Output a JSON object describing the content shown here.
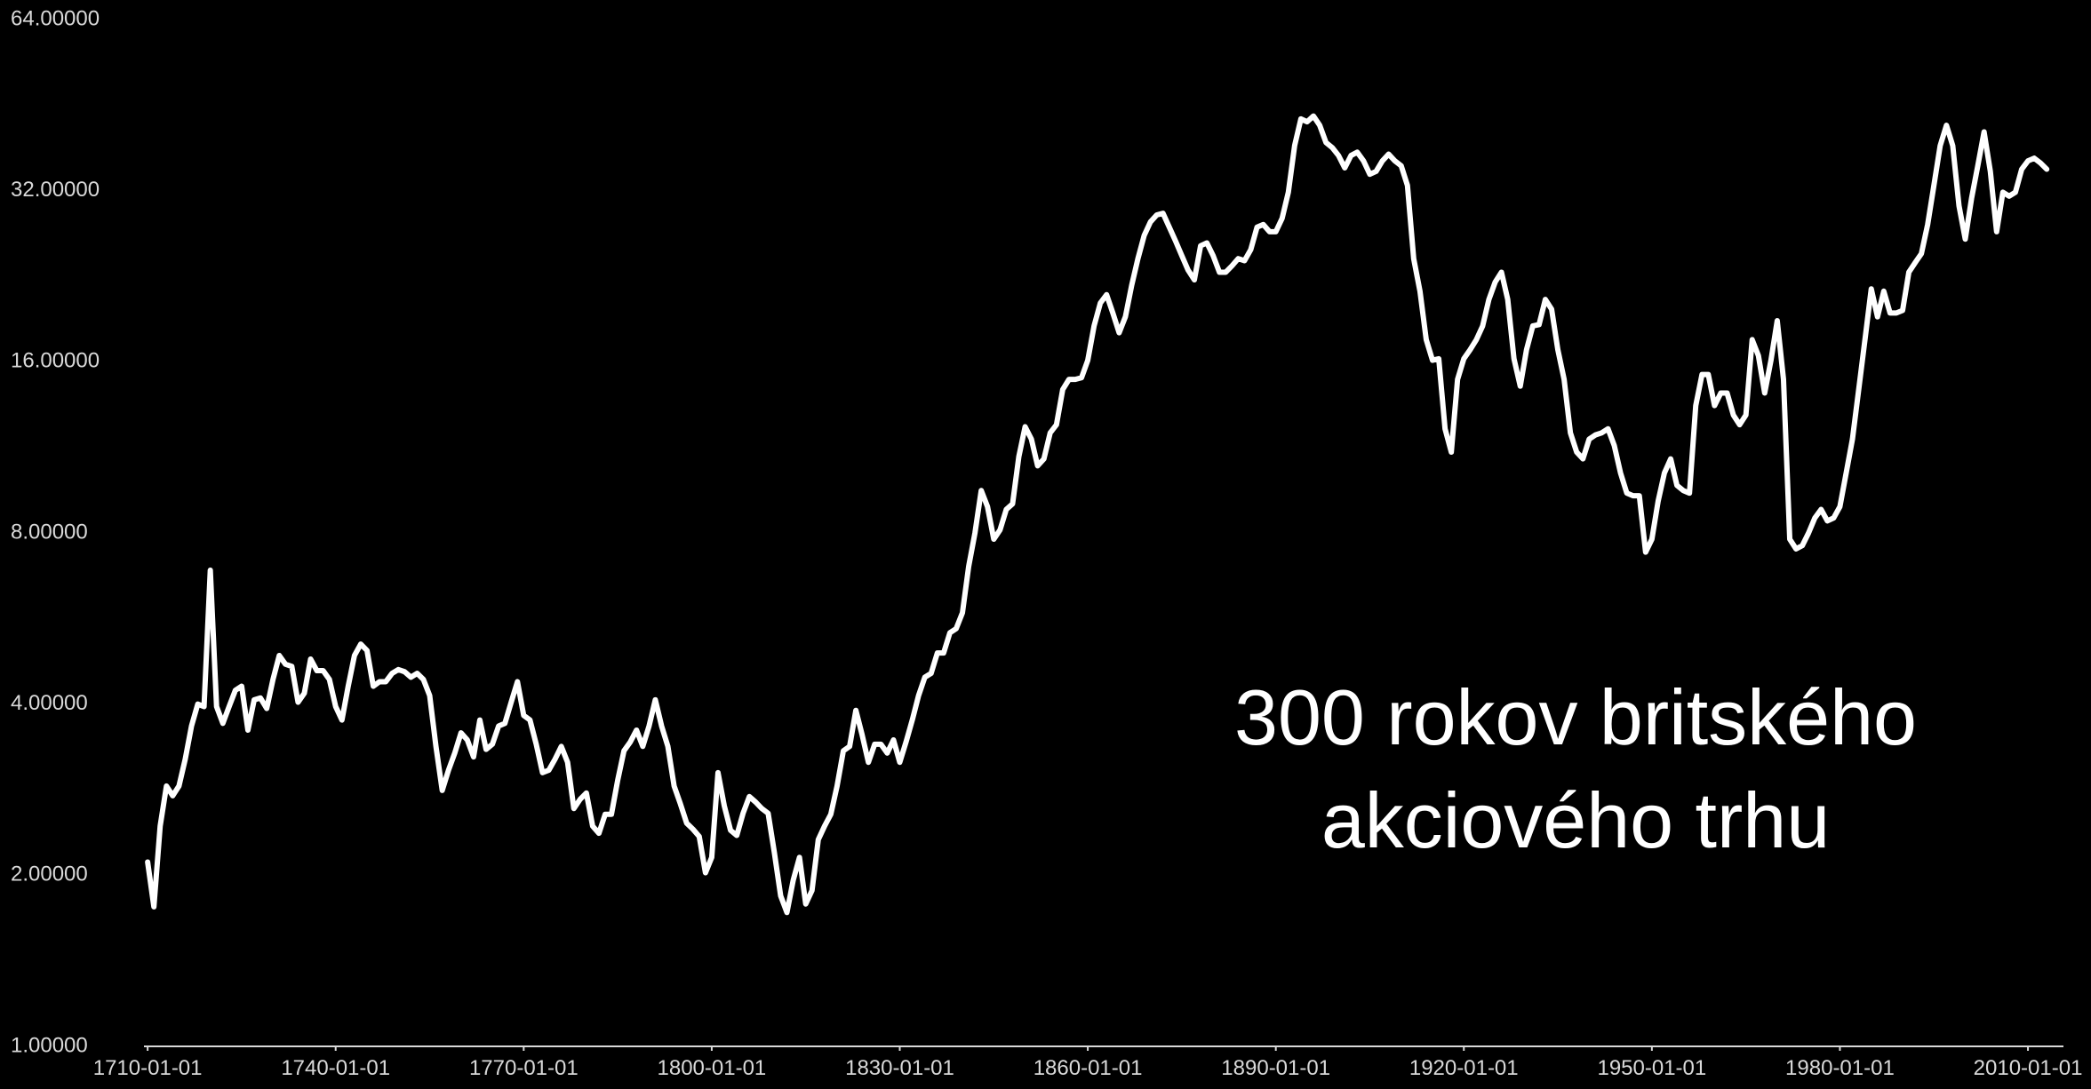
{
  "chart_data": {
    "type": "line",
    "yscale": "log",
    "color": "#ffffff",
    "line_width": 6,
    "annotation": [
      "300 rokov britského",
      "akciového trhu"
    ],
    "xlim": [
      "1709-06-01",
      "2015-09-01"
    ],
    "xticks": [
      "1710-01-01",
      "1740-01-01",
      "1770-01-01",
      "1800-01-01",
      "1830-01-01",
      "1860-01-01",
      "1890-01-01",
      "1920-01-01",
      "1950-01-01",
      "1980-01-01",
      "2010-01-01"
    ],
    "ylim": [
      1,
      64
    ],
    "yticks": [
      {
        "value": 1,
        "label": "1.00000"
      },
      {
        "value": 2,
        "label": "2.00000"
      },
      {
        "value": 4,
        "label": "4.00000"
      },
      {
        "value": 8,
        "label": "8.00000"
      },
      {
        "value": 16,
        "label": "16.00000"
      },
      {
        "value": 32,
        "label": "32.00000"
      },
      {
        "value": 64,
        "label": "64.00000"
      }
    ],
    "x": [
      "1710-01-01",
      "1711-01-01",
      "1712-01-01",
      "1713-01-01",
      "1714-01-01",
      "1715-01-01",
      "1716-01-01",
      "1717-01-01",
      "1718-01-01",
      "1719-01-01",
      "1720-01-01",
      "1721-01-01",
      "1722-01-01",
      "1723-01-01",
      "1724-01-01",
      "1725-01-01",
      "1726-01-01",
      "1727-01-01",
      "1728-01-01",
      "1729-01-01",
      "1730-01-01",
      "1731-01-01",
      "1732-01-01",
      "1733-01-01",
      "1734-01-01",
      "1735-01-01",
      "1736-01-01",
      "1737-01-01",
      "1738-01-01",
      "1739-01-01",
      "1740-01-01",
      "1741-01-01",
      "1742-01-01",
      "1743-01-01",
      "1744-01-01",
      "1745-01-01",
      "1746-01-01",
      "1747-01-01",
      "1748-01-01",
      "1749-01-01",
      "1750-01-01",
      "1751-01-01",
      "1752-01-01",
      "1753-01-01",
      "1754-01-01",
      "1755-01-01",
      "1756-01-01",
      "1757-01-01",
      "1758-01-01",
      "1759-01-01",
      "1760-01-01",
      "1761-01-01",
      "1762-01-01",
      "1763-01-01",
      "1764-01-01",
      "1765-01-01",
      "1766-01-01",
      "1767-01-01",
      "1768-01-01",
      "1769-01-01",
      "1770-01-01",
      "1771-01-01",
      "1772-01-01",
      "1773-01-01",
      "1774-01-01",
      "1775-01-01",
      "1776-01-01",
      "1777-01-01",
      "1778-01-01",
      "1779-01-01",
      "1780-01-01",
      "1781-01-01",
      "1782-01-01",
      "1783-01-01",
      "1784-01-01",
      "1785-01-01",
      "1786-01-01",
      "1787-01-01",
      "1788-01-01",
      "1789-01-01",
      "1790-01-01",
      "1791-01-01",
      "1792-01-01",
      "1793-01-01",
      "1794-01-01",
      "1795-01-01",
      "1796-01-01",
      "1797-01-01",
      "1798-01-01",
      "1799-01-01",
      "1800-01-01",
      "1801-01-01",
      "1802-01-01",
      "1803-01-01",
      "1804-01-01",
      "1805-01-01",
      "1806-01-01",
      "1807-01-01",
      "1808-01-01",
      "1809-01-01",
      "1810-01-01",
      "1811-01-01",
      "1812-01-01",
      "1813-01-01",
      "1814-01-01",
      "1815-01-01",
      "1816-01-01",
      "1817-01-01",
      "1818-01-01",
      "1819-01-01",
      "1820-01-01",
      "1821-01-01",
      "1822-01-01",
      "1823-01-01",
      "1824-01-01",
      "1825-01-01",
      "1826-01-01",
      "1827-01-01",
      "1828-01-01",
      "1829-01-01",
      "1830-01-01",
      "1831-01-01",
      "1832-01-01",
      "1833-01-01",
      "1834-01-01",
      "1835-01-01",
      "1836-01-01",
      "1837-01-01",
      "1838-01-01",
      "1839-01-01",
      "1840-01-01",
      "1841-01-01",
      "1842-01-01",
      "1843-01-01",
      "1844-01-01",
      "1845-01-01",
      "1846-01-01",
      "1847-01-01",
      "1848-01-01",
      "1849-01-01",
      "1850-01-01",
      "1851-01-01",
      "1852-01-01",
      "1853-01-01",
      "1854-01-01",
      "1855-01-01",
      "1856-01-01",
      "1857-01-01",
      "1858-01-01",
      "1859-01-01",
      "1860-01-01",
      "1861-01-01",
      "1862-01-01",
      "1863-01-01",
      "1864-01-01",
      "1865-01-01",
      "1866-01-01",
      "1867-01-01",
      "1868-01-01",
      "1869-01-01",
      "1870-01-01",
      "1871-01-01",
      "1872-01-01",
      "1873-01-01",
      "1874-01-01",
      "1875-01-01",
      "1876-01-01",
      "1877-01-01",
      "1878-01-01",
      "1879-01-01",
      "1880-01-01",
      "1881-01-01",
      "1882-01-01",
      "1883-01-01",
      "1884-01-01",
      "1885-01-01",
      "1886-01-01",
      "1887-01-01",
      "1888-01-01",
      "1889-01-01",
      "1890-01-01",
      "1891-01-01",
      "1892-01-01",
      "1893-01-01",
      "1894-01-01",
      "1895-01-01",
      "1896-01-01",
      "1897-01-01",
      "1898-01-01",
      "1899-01-01",
      "1900-01-01",
      "1901-01-01",
      "1902-01-01",
      "1903-01-01",
      "1904-01-01",
      "1905-01-01",
      "1906-01-01",
      "1907-01-01",
      "1908-01-01",
      "1909-01-01",
      "1910-01-01",
      "1911-01-01",
      "1912-01-01",
      "1913-01-01",
      "1914-01-01",
      "1915-01-01",
      "1916-01-01",
      "1917-01-01",
      "1918-01-01",
      "1919-01-01",
      "1920-01-01",
      "1921-01-01",
      "1922-01-01",
      "1923-01-01",
      "1924-01-01",
      "1925-01-01",
      "1926-01-01",
      "1927-01-01",
      "1928-01-01",
      "1929-01-01",
      "1930-01-01",
      "1931-01-01",
      "1932-01-01",
      "1933-01-01",
      "1934-01-01",
      "1935-01-01",
      "1936-01-01",
      "1937-01-01",
      "1938-01-01",
      "1939-01-01",
      "1940-01-01",
      "1941-01-01",
      "1942-01-01",
      "1943-01-01",
      "1944-01-01",
      "1945-01-01",
      "1946-01-01",
      "1947-01-01",
      "1948-01-01",
      "1949-01-01",
      "1950-01-01",
      "1951-01-01",
      "1952-01-01",
      "1953-01-01",
      "1954-01-01",
      "1955-01-01",
      "1956-01-01",
      "1957-01-01",
      "1958-01-01",
      "1959-01-01",
      "1960-01-01",
      "1961-01-01",
      "1962-01-01",
      "1963-01-01",
      "1964-01-01",
      "1965-01-01",
      "1966-01-01",
      "1967-01-01",
      "1968-01-01",
      "1969-01-01",
      "1970-01-01",
      "1971-01-01",
      "1972-01-01",
      "1973-01-01",
      "1974-01-01",
      "1975-01-01",
      "1976-01-01",
      "1977-01-01",
      "1978-01-01",
      "1979-01-01",
      "1980-01-01",
      "1981-01-01",
      "1982-01-01",
      "1983-01-01",
      "1984-01-01",
      "1985-01-01",
      "1986-01-01",
      "1987-01-01",
      "1988-01-01",
      "1989-01-01",
      "1990-01-01",
      "1991-01-01",
      "1992-01-01",
      "1993-01-01",
      "1994-01-01",
      "1995-01-01",
      "1996-01-01",
      "1997-01-01",
      "1998-01-01",
      "1999-01-01",
      "2000-01-01",
      "2001-01-01",
      "2002-01-01",
      "2003-01-01",
      "2004-01-01",
      "2005-01-01",
      "2006-01-01",
      "2007-01-01",
      "2008-01-01",
      "2009-01-01",
      "2010-01-01",
      "2011-01-01",
      "2012-01-01",
      "2013-01-01"
    ],
    "values": [
      2.11,
      1.76,
      2.44,
      2.87,
      2.76,
      2.87,
      3.2,
      3.66,
      4.0,
      3.96,
      6.88,
      3.96,
      3.7,
      3.96,
      4.23,
      4.3,
      3.6,
      4.07,
      4.1,
      3.93,
      4.42,
      4.87,
      4.7,
      4.66,
      4.03,
      4.18,
      4.8,
      4.58,
      4.58,
      4.42,
      3.96,
      3.75,
      4.3,
      4.87,
      5.1,
      4.97,
      4.3,
      4.38,
      4.38,
      4.53,
      4.6,
      4.56,
      4.46,
      4.53,
      4.42,
      4.14,
      3.37,
      2.82,
      3.06,
      3.28,
      3.56,
      3.46,
      3.23,
      3.75,
      3.33,
      3.4,
      3.66,
      3.7,
      4.03,
      4.38,
      3.82,
      3.75,
      3.4,
      3.03,
      3.06,
      3.2,
      3.37,
      3.16,
      2.62,
      2.72,
      2.79,
      2.44,
      2.37,
      2.56,
      2.56,
      2.94,
      3.31,
      3.43,
      3.6,
      3.37,
      3.66,
      4.07,
      3.66,
      3.37,
      2.87,
      2.67,
      2.47,
      2.41,
      2.34,
      2.02,
      2.15,
      3.03,
      2.65,
      2.4,
      2.35,
      2.57,
      2.75,
      2.69,
      2.62,
      2.57,
      2.19,
      1.84,
      1.72,
      1.96,
      2.15,
      1.78,
      1.88,
      2.31,
      2.44,
      2.56,
      2.87,
      3.31,
      3.37,
      3.9,
      3.53,
      3.16,
      3.4,
      3.4,
      3.28,
      3.46,
      3.16,
      3.43,
      3.75,
      4.14,
      4.46,
      4.53,
      4.92,
      4.92,
      5.34,
      5.43,
      5.79,
      6.99,
      8.0,
      9.5,
      8.9,
      7.8,
      8.1,
      8.8,
      9.0,
      10.9,
      12.3,
      11.7,
      10.5,
      10.8,
      12.0,
      12.4,
      14.3,
      14.9,
      14.9,
      15.0,
      16.1,
      18.5,
      20.3,
      21.0,
      19.5,
      18.0,
      19.2,
      21.8,
      24.3,
      26.7,
      28.2,
      29.0,
      29.2,
      27.6,
      26.1,
      24.6,
      23.2,
      22.3,
      25.6,
      25.9,
      24.6,
      23.0,
      23.0,
      23.6,
      24.3,
      24.1,
      25.2,
      27.6,
      27.9,
      27.1,
      27.1,
      28.6,
      31.8,
      38.4,
      42.8,
      42.3,
      43.3,
      41.7,
      38.9,
      38.1,
      36.9,
      35.1,
      36.9,
      37.4,
      36.1,
      34.2,
      34.6,
      36.1,
      37.1,
      36.1,
      35.4,
      32.7,
      24.3,
      21.3,
      17.5,
      16.1,
      16.2,
      12.2,
      11.1,
      14.9,
      16.2,
      16.8,
      17.5,
      18.5,
      20.6,
      22.1,
      23.0,
      20.6,
      16.2,
      14.5,
      16.8,
      18.5,
      18.6,
      20.6,
      19.8,
      16.8,
      14.9,
      12.0,
      11.1,
      10.8,
      11.7,
      11.9,
      12.0,
      12.2,
      11.4,
      10.2,
      9.4,
      9.3,
      9.3,
      7.4,
      7.8,
      9.1,
      10.2,
      10.8,
      9.7,
      9.5,
      9.4,
      13.4,
      15.2,
      15.2,
      13.4,
      14.1,
      14.1,
      12.9,
      12.4,
      12.9,
      17.5,
      16.4,
      14.1,
      16.1,
      18.9,
      14.9,
      7.8,
      7.5,
      7.6,
      8.0,
      8.5,
      8.8,
      8.4,
      8.5,
      8.9,
      10.2,
      11.7,
      14.3,
      17.5,
      21.5,
      19.2,
      21.3,
      19.5,
      19.5,
      19.7,
      23.0,
      23.9,
      24.8,
      27.9,
      32.7,
      38.4,
      41.7,
      38.4,
      30.1,
      26.3,
      31.0,
      35.4,
      40.6,
      34.6,
      27.1,
      31.8,
      31.3,
      31.8,
      34.9,
      36.1,
      36.5,
      35.8,
      34.9
    ]
  }
}
